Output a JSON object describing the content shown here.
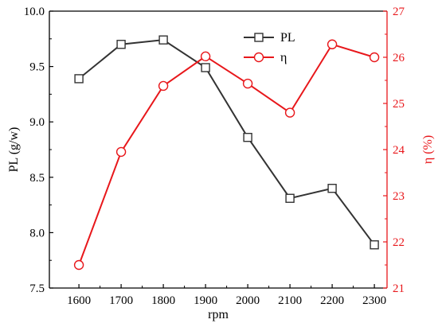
{
  "chart_data": {
    "type": "line",
    "x": [
      1600,
      1700,
      1800,
      1900,
      2000,
      2100,
      2200,
      2300
    ],
    "xlabel": "rpm",
    "xlim": [
      1530,
      2330
    ],
    "x_ticks": [
      "1600",
      "1700",
      "1800",
      "1900",
      "2000",
      "2100",
      "2200",
      "2300"
    ],
    "left_axis": {
      "label": "PL (g/w)",
      "ylim": [
        7.5,
        10.0
      ],
      "ticks": [
        "7.5",
        "8.0",
        "8.5",
        "9.0",
        "9.5",
        "10.0"
      ],
      "color": "#000000"
    },
    "right_axis": {
      "label": "η (%)",
      "ylim": [
        21,
        27
      ],
      "ticks": [
        "21",
        "22",
        "23",
        "24",
        "25",
        "26",
        "27"
      ],
      "color": "#e8171b"
    },
    "series": [
      {
        "name": "PL",
        "axis": "left",
        "marker": "square",
        "color": "#333333",
        "values": [
          9.39,
          9.7,
          9.74,
          9.49,
          8.86,
          8.31,
          8.4,
          7.89
        ]
      },
      {
        "name": "η",
        "axis": "right",
        "marker": "circle",
        "color": "#e8171b",
        "values": [
          21.5,
          23.95,
          25.38,
          26.02,
          25.43,
          24.8,
          26.28,
          26.0
        ]
      }
    ],
    "legend_position": "top-center",
    "grid": false
  }
}
